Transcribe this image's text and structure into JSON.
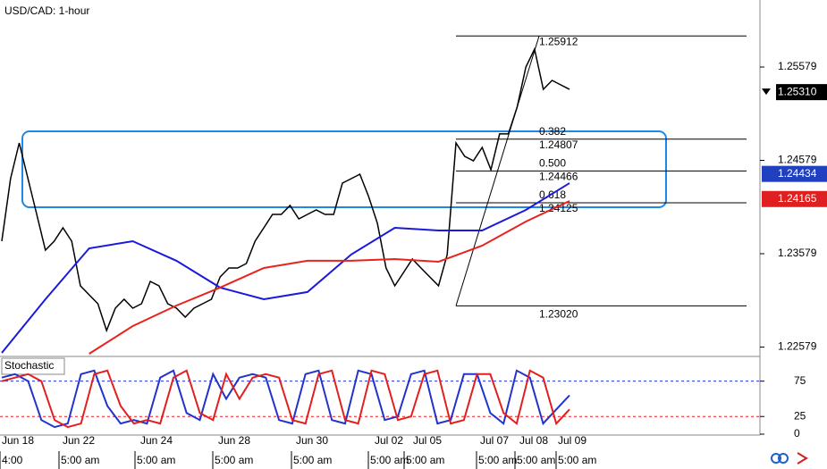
{
  "chart_data": [
    {
      "type": "line",
      "title": "USD/CAD: 1-hour",
      "ylim": [
        1.22488,
        1.26297
      ],
      "yticks": [
        1.25579,
        1.24579,
        1.23579,
        1.22579
      ],
      "series": [
        {
          "color": "#000000",
          "values": [
            1.23713,
            1.24383,
            1.24766,
            1.24383,
            1.24,
            1.23617,
            1.23713,
            1.23857,
            1.23713,
            1.23235,
            1.23139,
            1.23043,
            1.22756,
            1.22995,
            1.23091,
            1.22995,
            1.23043,
            1.23282,
            1.23235,
            1.23043,
            1.22995,
            1.229,
            1.22995,
            1.23043,
            1.23091,
            1.2333,
            1.23426,
            1.23426,
            1.23474,
            1.23713,
            1.23857,
            1.24,
            1.24,
            1.24096,
            1.23952,
            1.24,
            1.24048,
            1.24,
            1.24,
            1.24335,
            1.24383,
            1.24431,
            1.24192,
            1.23905,
            1.23426,
            1.23235,
            1.23378,
            1.23522,
            1.23426,
            1.2333,
            1.23235,
            1.2357,
            1.24766,
            1.24622,
            1.24574,
            1.24718,
            1.24479,
            1.24862,
            1.24862,
            1.25149,
            1.25579,
            1.25771,
            1.2534,
            1.25436,
            1.25388,
            1.2534
          ]
        },
        {
          "color": "#1a1adb",
          "values": [
            1.22517,
            1.23091,
            1.23636,
            1.23713,
            1.23503,
            1.23216,
            1.23091,
            1.23168,
            1.2357,
            1.23857,
            1.23828,
            1.23828,
            1.24048,
            1.24335
          ]
        },
        {
          "color": "#e8231c",
          "values": [
            null,
            null,
            1.22507,
            1.22804,
            1.23024,
            1.23216,
            1.23426,
            1.23503,
            1.23503,
            1.23522,
            1.23493,
            1.23665,
            1.23924,
            1.24144
          ]
        }
      ],
      "fib_levels": [
        {
          "price": 1.25912
        },
        {
          "ratio": 0.382,
          "price": 1.24807
        },
        {
          "ratio": {
            "value": 0.5,
            "label": "0.500"
          },
          "price": 1.24466
        },
        {
          "ratio": 0.618,
          "price": 1.24125
        },
        {
          "price": {
            "value": 1.2302,
            "label": "1.23020"
          }
        }
      ],
      "price_tags": [
        {
          "price": {
            "value": 1.2531,
            "label": "1.25310"
          },
          "color": "#000000"
        },
        {
          "price": 1.24434,
          "color": "#2040c0"
        },
        {
          "price": 1.24165,
          "color": "#e02020"
        }
      ]
    },
    {
      "type": "line",
      "title": "Stochastic",
      "ylim": [
        0,
        110
      ],
      "yticks": [
        75,
        25,
        0
      ],
      "levels": [
        {
          "value": 75,
          "color": "#2233cc"
        },
        {
          "value": 25,
          "color": "#e02020"
        }
      ],
      "series": [
        {
          "color": "#2233cc",
          "values": [
            80,
            85,
            75,
            20,
            10,
            15,
            85,
            90,
            40,
            15,
            20,
            15,
            80,
            90,
            30,
            20,
            85,
            50,
            80,
            85,
            80,
            20,
            15,
            85,
            90,
            20,
            15,
            90,
            85,
            20,
            25,
            85,
            90,
            15,
            20,
            85,
            85,
            30,
            15,
            90,
            80,
            15,
            35,
            55
          ]
        },
        {
          "color": "#e02020",
          "values": [
            75,
            80,
            85,
            75,
            20,
            10,
            15,
            85,
            90,
            40,
            15,
            20,
            15,
            80,
            90,
            30,
            20,
            85,
            50,
            80,
            85,
            80,
            20,
            15,
            85,
            90,
            20,
            15,
            90,
            85,
            20,
            25,
            85,
            90,
            15,
            20,
            85,
            85,
            30,
            15,
            90,
            80,
            15,
            35
          ]
        }
      ],
      "x_date_labels": [
        "Jun 18",
        "Jun 22",
        "Jun 24",
        "Jun 28",
        "Jun 30",
        "Jul 02",
        "Jul 05",
        "Jul 07",
        "Jul 08",
        "Jul 09"
      ],
      "x_time_labels": [
        "4:00",
        "5:00 am",
        "5:00 am",
        "5:00 am",
        "5:00 am",
        "5:00 am",
        "5:00 am",
        "5:00 am",
        "5:00 am",
        "5:00 am"
      ]
    }
  ]
}
